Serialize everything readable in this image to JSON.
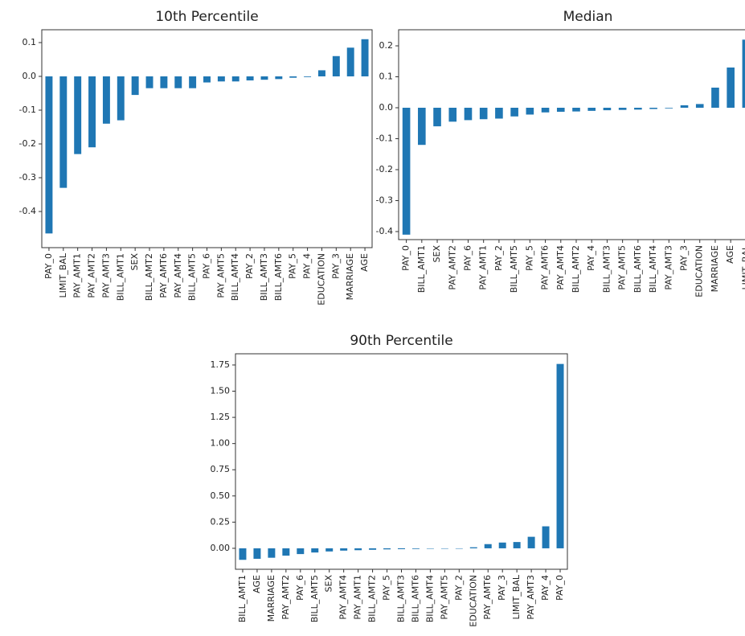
{
  "chart_data": [
    {
      "type": "bar",
      "title": "10th Percentile",
      "color": "#1f77b4",
      "categories": [
        "PAY_0",
        "LIMIT_BAL",
        "PAY_AMT1",
        "PAY_AMT2",
        "PAY_AMT3",
        "BILL_AMT1",
        "SEX",
        "BILL_AMT2",
        "PAY_AMT6",
        "PAY_AMT4",
        "BILL_AMT5",
        "PAY_6",
        "PAY_AMT5",
        "BILL_AMT4",
        "PAY_2",
        "BILL_AMT3",
        "BILL_AMT6",
        "PAY_5",
        "PAY_4",
        "EDUCATION",
        "PAY_3",
        "MARRIAGE",
        "AGE"
      ],
      "values": [
        -0.465,
        -0.33,
        -0.23,
        -0.21,
        -0.14,
        -0.13,
        -0.055,
        -0.035,
        -0.035,
        -0.035,
        -0.035,
        -0.018,
        -0.015,
        -0.015,
        -0.012,
        -0.01,
        -0.008,
        -0.004,
        -0.002,
        0.018,
        0.06,
        0.085,
        0.11
      ],
      "ylim": [
        -0.507,
        0.138
      ],
      "yticks": [
        0.1,
        {
          "value": 0,
          "label": "0.0"
        },
        -0.1,
        -0.2,
        -0.3,
        -0.4
      ]
    },
    {
      "type": "bar",
      "title": "Median",
      "color": "#1f77b4",
      "categories": [
        "PAY_0",
        "BILL_AMT1",
        "SEX",
        "PAY_AMT2",
        "PAY_6",
        "PAY_AMT1",
        "PAY_2",
        "BILL_AMT5",
        "PAY_5",
        "PAY_AMT6",
        "PAY_AMT4",
        "BILL_AMT2",
        "PAY_4",
        "BILL_AMT3",
        "PAY_AMT5",
        "BILL_AMT6",
        "BILL_AMT4",
        "PAY_AMT3",
        "PAY_3",
        "EDUCATION",
        "MARRIAGE",
        "AGE",
        "LIMIT_BAL"
      ],
      "values": [
        -0.41,
        -0.12,
        -0.06,
        -0.045,
        -0.04,
        -0.037,
        -0.035,
        -0.028,
        -0.022,
        -0.015,
        -0.013,
        -0.012,
        -0.01,
        -0.008,
        -0.007,
        -0.006,
        -0.004,
        -0.002,
        0.008,
        0.012,
        0.065,
        0.13,
        0.22
      ],
      "ylim": [
        -0.426,
        0.252
      ],
      "yticks": [
        0.2,
        0.1,
        {
          "value": 0,
          "label": "0.0"
        },
        -0.1,
        -0.2,
        -0.3,
        -0.4
      ]
    },
    {
      "type": "bar",
      "title": "90th Percentile",
      "color": "#1f77b4",
      "categories": [
        "BILL_AMT1",
        "AGE",
        "MARRIAGE",
        "PAY_AMT2",
        "PAY_6",
        "BILL_AMT5",
        "SEX",
        "PAY_AMT4",
        "PAY_AMT1",
        "BILL_AMT2",
        "PAY_5",
        "BILL_AMT3",
        "BILL_AMT6",
        "BILL_AMT4",
        "PAY_AMT5",
        "PAY_2",
        "EDUCATION",
        "PAY_AMT6",
        "PAY_3",
        "LIMIT_BAL",
        "PAY_AMT3",
        "PAY_4",
        "PAY_0"
      ],
      "values": [
        -0.11,
        -0.1,
        -0.09,
        -0.07,
        -0.055,
        -0.04,
        -0.03,
        -0.022,
        -0.018,
        -0.014,
        -0.01,
        -0.008,
        -0.006,
        -0.004,
        -0.002,
        0,
        0.01,
        0.04,
        0.055,
        0.06,
        0.11,
        0.21,
        1.76
      ],
      "ylim": [
        -0.2,
        1.857
      ],
      "yticks": [
        1.75,
        {
          "value": 1.5,
          "label": "1.50"
        },
        1.25,
        {
          "value": 1,
          "label": "1.00"
        },
        0.75,
        {
          "value": 0.5,
          "label": "0.50"
        },
        0.25,
        {
          "value": 0,
          "label": "0.00"
        }
      ]
    }
  ]
}
